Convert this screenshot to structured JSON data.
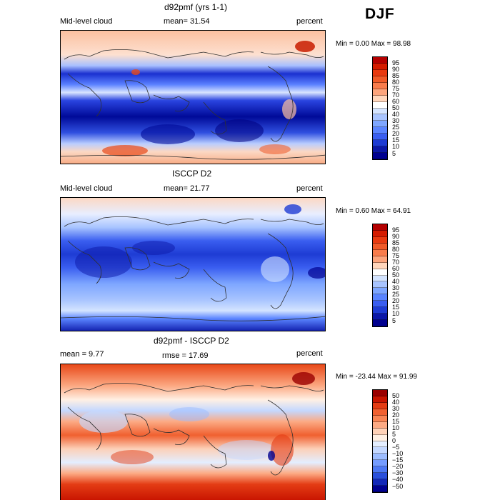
{
  "season": "DJF",
  "panels": [
    {
      "title": "d92pmf (yrs 1-1)",
      "field": "Mid-level cloud",
      "stat": "mean=  31.54",
      "units": "percent",
      "minmax": "Min =   0.00 Max =  98.98"
    },
    {
      "title": "ISCCP D2",
      "field": "Mid-level cloud",
      "stat": "mean=  21.77",
      "units": "percent",
      "minmax": "Min =   0.60 Max =  64.91"
    },
    {
      "title": "d92pmf - ISCCP D2",
      "field": "mean =    9.77",
      "stat": "rmse =   17.69",
      "units": "percent",
      "minmax": "Min = -23.44 Max =  91.99"
    }
  ],
  "colorbars": {
    "abs_levels": [
      "95",
      "90",
      "85",
      "80",
      "75",
      "70",
      "60",
      "50",
      "40",
      "30",
      "25",
      "20",
      "15",
      "10",
      "5"
    ],
    "abs_colors": [
      "#b40000",
      "#d41c00",
      "#e83a10",
      "#f05a28",
      "#f87c4c",
      "#fca47c",
      "#ffd6bc",
      "#ffffff",
      "#d4e4ff",
      "#a8c4ff",
      "#7ea6ff",
      "#5a84ff",
      "#3a5ef0",
      "#1e3cd4",
      "#0c18a8",
      "#000090"
    ],
    "diff_levels": [
      "50",
      "40",
      "30",
      "20",
      "15",
      "10",
      "5",
      "0",
      "−5",
      "−10",
      "−15",
      "−20",
      "−30",
      "−40",
      "−50"
    ],
    "diff_colors": [
      "#9a0000",
      "#c81400",
      "#e43c14",
      "#f06030",
      "#f88454",
      "#fcaa84",
      "#ffd2b8",
      "#fff0e4",
      "#e4eeff",
      "#c4d8ff",
      "#9cbcff",
      "#749cff",
      "#4c78f4",
      "#2a50dc",
      "#1228b8",
      "#000090"
    ]
  },
  "maps": {
    "continent_color": "#303030"
  }
}
